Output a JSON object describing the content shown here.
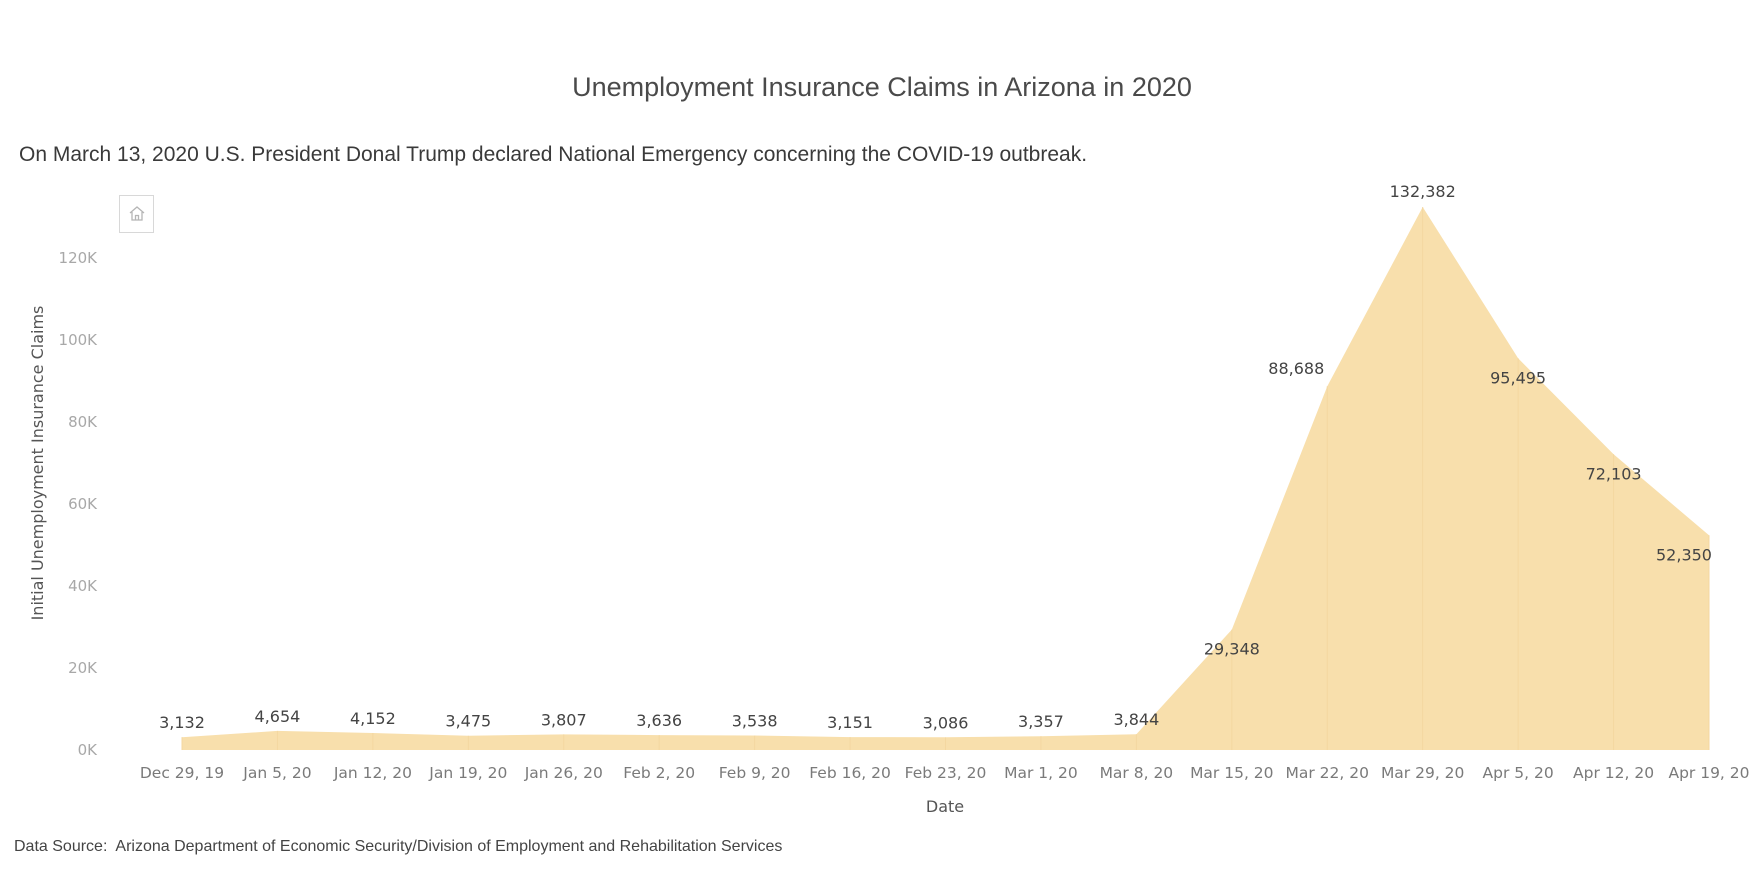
{
  "chart_data": {
    "type": "area",
    "title": "Unemployment Insurance Claims in Arizona in 2020",
    "subtitle": "On March 13, 2020 U.S. President Donal Trump declared National Emergency concerning the COVID-19 outbreak.",
    "xlabel": "Date",
    "ylabel": "Initial Unemployment Insurance Claims",
    "categories": [
      "Dec 29, 19",
      "Jan 5, 20",
      "Jan 12, 20",
      "Jan 19, 20",
      "Jan 26, 20",
      "Feb 2, 20",
      "Feb 9, 20",
      "Feb 16, 20",
      "Feb 23, 20",
      "Mar 1, 20",
      "Mar 8, 20",
      "Mar 15, 20",
      "Mar 22, 20",
      "Mar 29, 20",
      "Apr 5, 20",
      "Apr 12, 20",
      "Apr 19, 20"
    ],
    "values": [
      3132,
      4654,
      4152,
      3475,
      3807,
      3636,
      3538,
      3151,
      3086,
      3357,
      3844,
      29348,
      88688,
      132382,
      95495,
      72103,
      52350
    ],
    "value_labels": [
      "3,132",
      "4,654",
      "4,152",
      "3,475",
      "3,807",
      "3,636",
      "3,538",
      "3,151",
      "3,086",
      "3,357",
      "3,844",
      "29,348",
      "88,688",
      "132,382",
      "95,495",
      "72,103",
      "52,350"
    ],
    "y_ticks": [
      0,
      20000,
      40000,
      60000,
      80000,
      100000,
      120000
    ],
    "y_tick_labels": [
      "0K",
      "20K",
      "40K",
      "60K",
      "80K",
      "100K",
      "120K"
    ],
    "ylim": [
      0,
      132382
    ],
    "grid": false,
    "fill_color": "#f8dfac"
  },
  "footer": {
    "source_label": "Data Source:",
    "source_text": "Arizona Department of Economic Security/Division of Employment and Rehabilitation Services"
  },
  "toolbar": {
    "home_icon": "home-icon"
  }
}
